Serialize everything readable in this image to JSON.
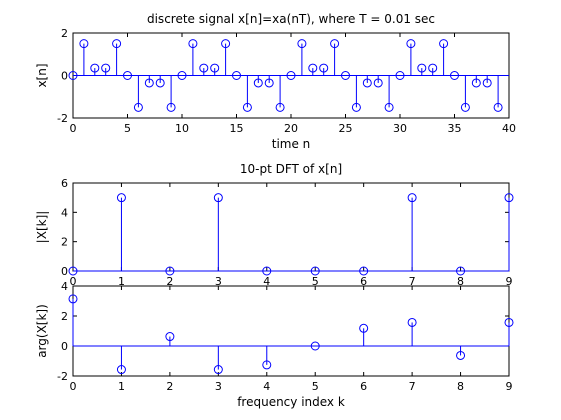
{
  "colors": {
    "stem": "#0000ff",
    "axis": "#000000",
    "background": "#ffffff"
  },
  "chart_data": [
    {
      "type": "stem",
      "title": "discrete signal x[n]=xa(nT), where T = 0.01 sec",
      "xlabel": "time n",
      "ylabel": "x[n]",
      "xlim": [
        0,
        40
      ],
      "ylim": [
        -2,
        2
      ],
      "xticks": [
        "0",
        "5",
        "10",
        "15",
        "20",
        "25",
        "30",
        "35",
        "40"
      ],
      "yticks": [
        "-2",
        "0",
        "2"
      ],
      "grid": false,
      "x": [
        0,
        1,
        2,
        3,
        4,
        5,
        6,
        7,
        8,
        9,
        10,
        11,
        12,
        13,
        14,
        15,
        16,
        17,
        18,
        19,
        20,
        21,
        22,
        23,
        24,
        25,
        26,
        27,
        28,
        29,
        30,
        31,
        32,
        33,
        34,
        35,
        36,
        37,
        38,
        39
      ],
      "y": [
        0,
        1.5,
        0.35,
        0.35,
        1.5,
        0,
        -1.5,
        -0.35,
        -0.35,
        -1.5,
        0,
        1.5,
        0.35,
        0.35,
        1.5,
        0,
        -1.5,
        -0.35,
        -0.35,
        -1.5,
        0,
        1.5,
        0.35,
        0.35,
        1.5,
        0,
        -1.5,
        -0.35,
        -0.35,
        -1.5,
        0,
        1.5,
        0.35,
        0.35,
        1.5,
        0,
        -1.5,
        -0.35,
        -0.35,
        -1.5
      ]
    },
    {
      "type": "stem",
      "title": "10-pt DFT of x[n]",
      "xlabel": "",
      "ylabel": "|X[k]|",
      "xlim": [
        0,
        9
      ],
      "ylim": [
        0,
        6
      ],
      "xticks": [
        "0",
        "1",
        "2",
        "3",
        "4",
        "5",
        "6",
        "7",
        "8",
        "9"
      ],
      "yticks": [
        "0",
        "2",
        "4",
        "6"
      ],
      "grid": false,
      "x": [
        0,
        1,
        2,
        3,
        4,
        5,
        6,
        7,
        8,
        9
      ],
      "y": [
        0,
        5,
        0,
        5,
        0,
        0,
        0,
        5,
        0,
        5
      ]
    },
    {
      "type": "stem",
      "title": "",
      "xlabel": "frequency index k",
      "ylabel": "arg(X[k])",
      "xlim": [
        0,
        9
      ],
      "ylim": [
        -2,
        4
      ],
      "xticks": [
        "0",
        "1",
        "2",
        "3",
        "4",
        "5",
        "6",
        "7",
        "8",
        "9"
      ],
      "yticks": [
        "-2",
        "0",
        "2",
        "4"
      ],
      "grid": false,
      "x": [
        0,
        1,
        2,
        3,
        4,
        5,
        6,
        7,
        8,
        9
      ],
      "y": [
        3.14,
        -1.57,
        0.63,
        -1.57,
        -1.26,
        0,
        1.18,
        1.57,
        -0.63,
        1.57
      ]
    }
  ]
}
